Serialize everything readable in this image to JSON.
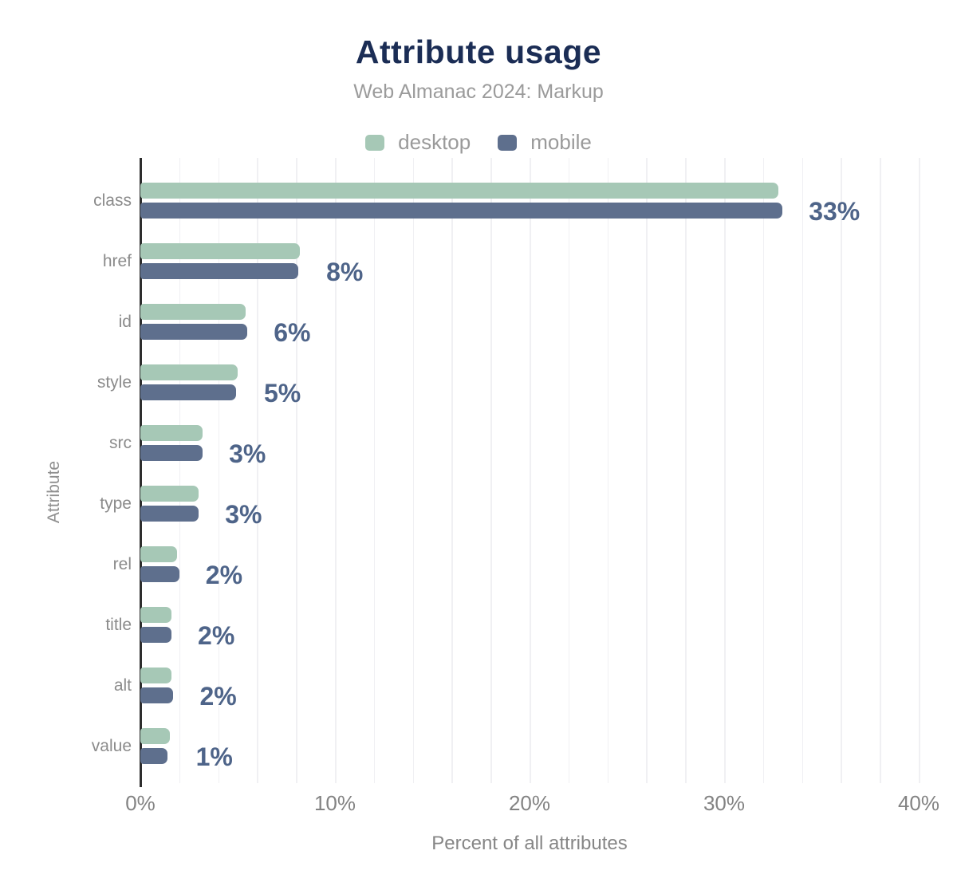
{
  "header": {
    "title": "Attribute usage",
    "subtitle": "Web Almanac 2024: Markup"
  },
  "colors": {
    "title": "#1b2d55",
    "desktop": "#a6c8b6",
    "mobile": "#5e6f8d",
    "value_label": "#4e6489",
    "axis_line": "#2d2d2d",
    "gridline": "#f0f0f3",
    "muted_text": "#8b8b8b"
  },
  "chart_data": {
    "type": "bar",
    "orientation": "horizontal",
    "title": "Attribute usage",
    "subtitle": "Web Almanac 2024: Markup",
    "xlabel": "Percent of all attributes",
    "ylabel": "Attribute",
    "xlim": [
      0,
      40
    ],
    "x_ticks": [
      "0%",
      "10%",
      "20%",
      "30%",
      "40%"
    ],
    "x_tick_values": [
      0,
      10,
      20,
      30,
      40
    ],
    "grid": "vertical, minor lines every 2%",
    "legend_position": "top-center",
    "categories": [
      "class",
      "href",
      "id",
      "style",
      "src",
      "type",
      "rel",
      "title",
      "alt",
      "value"
    ],
    "series": [
      {
        "name": "desktop",
        "color": "#a6c8b6",
        "values": [
          32.8,
          8.2,
          5.4,
          5.0,
          3.2,
          3.0,
          1.9,
          1.6,
          1.6,
          1.5
        ]
      },
      {
        "name": "mobile",
        "color": "#5e6f8d",
        "values": [
          33.0,
          8.1,
          5.5,
          4.9,
          3.2,
          3.0,
          2.0,
          1.6,
          1.7,
          1.4
        ]
      }
    ],
    "value_labels": [
      "33%",
      "8%",
      "6%",
      "5%",
      "3%",
      "3%",
      "2%",
      "2%",
      "2%",
      "1%"
    ]
  }
}
